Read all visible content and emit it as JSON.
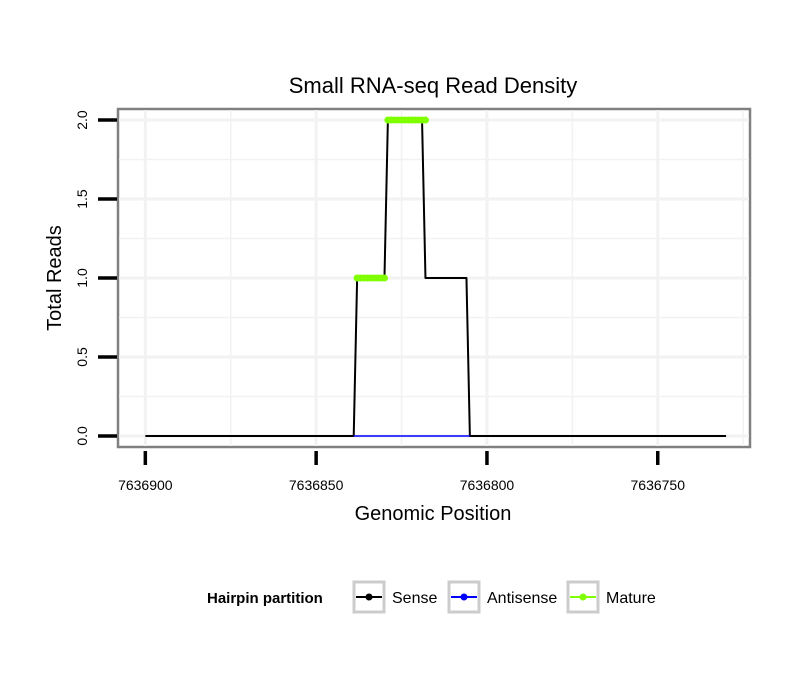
{
  "chart_data": {
    "type": "line",
    "title": "Small RNA-seq Read Density",
    "xlabel": "Genomic Position",
    "ylabel": "Total Reads",
    "x_axis_reversed": true,
    "xlim": [
      7636908,
      7636723
    ],
    "ylim": [
      -0.07,
      2.07
    ],
    "x_ticks": [
      7636900,
      7636850,
      7636800,
      7636750
    ],
    "x_tick_labels": [
      "7636900",
      "7636850",
      "7636800",
      "7636750"
    ],
    "y_ticks": [
      0,
      0.5,
      1,
      1.5,
      2
    ],
    "y_tick_labels": [
      "0.0",
      "0.5",
      "1.0",
      "1.5",
      "2.0"
    ],
    "grid": true,
    "legend": {
      "title": "Hairpin partition",
      "position": "bottom",
      "entries": [
        {
          "label": "Sense",
          "color": "#000000"
        },
        {
          "label": "Antisense",
          "color": "#0000ff"
        },
        {
          "label": "Mature",
          "color": "#7fff00"
        }
      ]
    },
    "series": [
      {
        "name": "Sense",
        "color": "#000000",
        "x": [
          7636900,
          7636839,
          7636838,
          7636830,
          7636829,
          7636819,
          7636818,
          7636806,
          7636805,
          7636730
        ],
        "y": [
          0,
          0,
          1,
          1,
          2,
          2,
          1,
          1,
          0,
          0
        ]
      },
      {
        "name": "Antisense",
        "color": "#0000ff",
        "x": [
          7636839,
          7636805
        ],
        "y": [
          0,
          0
        ]
      },
      {
        "name": "Mature",
        "color": "#7fff00",
        "segments": [
          {
            "x": [
              7636838,
              7636830
            ],
            "y": [
              1,
              1
            ]
          },
          {
            "x": [
              7636829,
              7636818
            ],
            "y": [
              2,
              2
            ]
          }
        ]
      }
    ]
  }
}
